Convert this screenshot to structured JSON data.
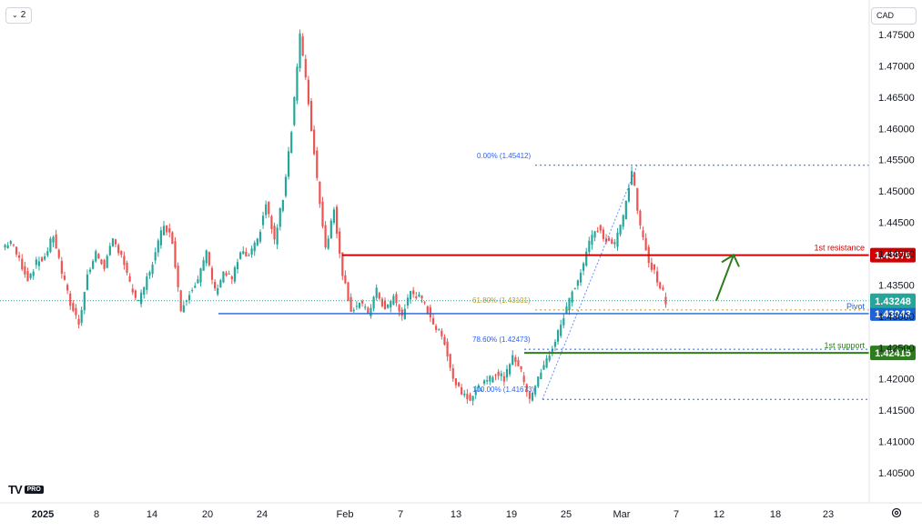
{
  "header": {
    "layout_button_label": "2",
    "currency_label": "CAD"
  },
  "logo": {
    "brand": "TV",
    "tier": "PRO"
  },
  "colors": {
    "up": "#26a69a",
    "down": "#ef5350",
    "resistance": "#d10000",
    "pivot": "#1e63d6",
    "support": "#2e7d1d",
    "fib": "#2962ff",
    "fib_618": "#c39a20",
    "arrow": "#2e7d1d",
    "grid_text": "#131722"
  },
  "chart_data": {
    "type": "candlestick",
    "symbol_quote": "CAD",
    "y_axis": {
      "ticks": [
        "1.47500",
        "1.47000",
        "1.46500",
        "1.46000",
        "1.45500",
        "1.45000",
        "1.44500",
        "1.44000",
        "1.43500",
        "1.43000",
        "1.42500",
        "1.42000",
        "1.41500",
        "1.41000",
        "1.40500"
      ]
    },
    "x_axis": {
      "ticks": [
        "2025",
        "8",
        "14",
        "20",
        "24",
        "Feb",
        "7",
        "13",
        "19",
        "25",
        "Mar",
        "7",
        "12",
        "18",
        "23"
      ]
    },
    "levels": [
      {
        "label": "1st resistance",
        "value": 1.43976,
        "value_label": "1.43976",
        "kind": "resistance"
      },
      {
        "label": "Pivot",
        "value": 1.43043,
        "value_label": "1.43043",
        "kind": "pivot"
      },
      {
        "label": "1st support",
        "value": 1.42415,
        "value_label": "1.42415",
        "kind": "support"
      }
    ],
    "last_price": {
      "value": 1.43248,
      "label": "1.43248"
    },
    "fibonacci": [
      {
        "label": "0.00% (1.45412)",
        "value": 1.45412
      },
      {
        "label": "61.80% (1.43101)",
        "value": 1.43101
      },
      {
        "label": "78.60% (1.42473)",
        "value": 1.42473
      },
      {
        "label": "100.00% (1.41673)",
        "value": 1.41673
      }
    ],
    "price_path": [
      [
        1.4395,
        1.441
      ],
      [
        1.438,
        1.442
      ],
      [
        1.44,
        1.439
      ],
      [
        1.437,
        1.436
      ],
      [
        1.4345,
        1.4385
      ],
      [
        1.438,
        1.4395
      ],
      [
        1.44,
        1.443
      ],
      [
        1.442,
        1.437
      ],
      [
        1.435,
        1.432
      ],
      [
        1.43,
        1.429
      ],
      [
        1.43,
        1.4365
      ],
      [
        1.438,
        1.44
      ],
      [
        1.4395,
        1.438
      ],
      [
        1.439,
        1.442
      ],
      [
        1.441,
        1.44
      ],
      [
        1.438,
        1.435
      ],
      [
        1.433,
        1.432
      ],
      [
        1.434,
        1.436
      ],
      [
        1.437,
        1.44
      ],
      [
        1.442,
        1.445
      ],
      [
        1.446,
        1.442
      ],
      [
        1.44,
        1.431
      ],
      [
        1.431,
        1.434
      ],
      [
        1.4345,
        1.436
      ],
      [
        1.438,
        1.44
      ],
      [
        1.4395,
        1.434
      ],
      [
        1.433,
        1.437
      ],
      [
        1.439,
        1.436
      ],
      [
        1.437,
        1.44
      ],
      [
        1.441,
        1.4395
      ],
      [
        1.439,
        1.442
      ],
      [
        1.444,
        1.448
      ],
      [
        1.447,
        1.442
      ],
      [
        1.443,
        1.449
      ],
      [
        1.454,
        1.46
      ],
      [
        1.472,
        1.475
      ],
      [
        1.47,
        1.464
      ],
      [
        1.46,
        1.452
      ],
      [
        1.449,
        1.441
      ],
      [
        1.444,
        1.447
      ],
      [
        1.442,
        1.437
      ],
      [
        1.437,
        1.431
      ],
      [
        1.43,
        1.432
      ],
      [
        1.4325,
        1.4305
      ],
      [
        1.43,
        1.434
      ],
      [
        1.433,
        1.431
      ],
      [
        1.4325,
        1.433
      ],
      [
        1.432,
        1.43
      ],
      [
        1.431,
        1.434
      ],
      [
        1.4345,
        1.433
      ],
      [
        1.4325,
        1.431
      ],
      [
        1.43,
        1.428
      ],
      [
        1.4285,
        1.426
      ],
      [
        1.425,
        1.42
      ],
      [
        1.419,
        1.418
      ],
      [
        1.4175,
        1.417
      ],
      [
        1.418,
        1.4185
      ],
      [
        1.418,
        1.4195
      ],
      [
        1.4205,
        1.421
      ],
      [
        1.4205,
        1.42
      ],
      [
        1.422,
        1.424
      ],
      [
        1.423,
        1.421
      ],
      [
        1.42,
        1.417
      ],
      [
        1.4185,
        1.42
      ],
      [
        1.421,
        1.423
      ],
      [
        1.424,
        1.426
      ],
      [
        1.427,
        1.43
      ],
      [
        1.432,
        1.434
      ],
      [
        1.435,
        1.437
      ],
      [
        1.438,
        1.442
      ],
      [
        1.443,
        1.444
      ],
      [
        1.445,
        1.442
      ],
      [
        1.443,
        1.4415
      ],
      [
        1.442,
        1.446
      ],
      [
        1.45,
        1.4535
      ],
      [
        1.452,
        1.444
      ],
      [
        1.443,
        1.439
      ],
      [
        1.439,
        1.436
      ],
      [
        1.435,
        1.4325
      ]
    ]
  }
}
